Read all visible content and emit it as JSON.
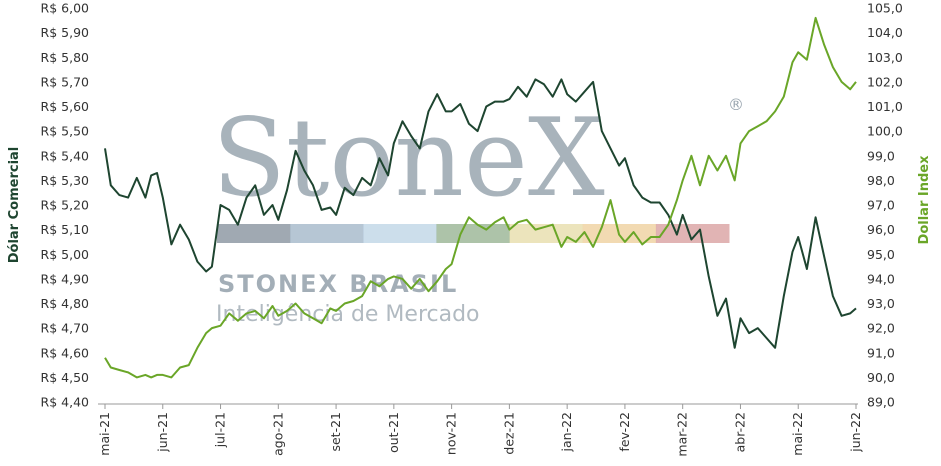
{
  "chart_data": {
    "type": "line",
    "xlabel": "",
    "categories": [
      "mai-21",
      "jun-21",
      "jul-21",
      "ago-21",
      "set-21",
      "out-21",
      "nov-21",
      "dez-21",
      "jan-22",
      "fev-22",
      "mar-22",
      "abr-22",
      "mai-22",
      "jun-22"
    ],
    "y_left": {
      "label": "Dólar Comercial",
      "range": [
        4.4,
        6.0
      ],
      "ticks": [
        "R$ 4,40",
        "R$ 4,50",
        "R$ 4,60",
        "R$ 4,70",
        "R$ 4,80",
        "R$ 4,90",
        "R$ 5,00",
        "R$ 5,10",
        "R$ 5,20",
        "R$ 5,30",
        "R$ 5,40",
        "R$ 5,50",
        "R$ 5,60",
        "R$ 5,70",
        "R$ 5,80",
        "R$ 5,90",
        "R$ 6,00"
      ],
      "color": "#1e4530"
    },
    "y_right": {
      "label": "Dollar Index",
      "range": [
        89.0,
        105.0
      ],
      "ticks": [
        "89,0",
        "90,0",
        "91,0",
        "92,0",
        "93,0",
        "94,0",
        "95,0",
        "96,0",
        "97,0",
        "98,0",
        "99,0",
        "100,0",
        "101,0",
        "102,0",
        "103,0",
        "104,0",
        "105,0"
      ],
      "color": "#6aa628"
    },
    "grid": false,
    "series": [
      {
        "axis": "left",
        "color": "#1e4530",
        "x": [
          0,
          0.1,
          0.25,
          0.4,
          0.55,
          0.7,
          0.8,
          0.9,
          1.0,
          1.15,
          1.3,
          1.45,
          1.6,
          1.75,
          1.85,
          2.0,
          2.15,
          2.3,
          2.45,
          2.6,
          2.75,
          2.9,
          3.0,
          3.15,
          3.3,
          3.45,
          3.6,
          3.75,
          3.9,
          4.0,
          4.15,
          4.3,
          4.45,
          4.6,
          4.75,
          4.9,
          5.0,
          5.15,
          5.3,
          5.45,
          5.6,
          5.75,
          5.9,
          6.0,
          6.15,
          6.3,
          6.45,
          6.6,
          6.75,
          6.9,
          7.0,
          7.15,
          7.3,
          7.45,
          7.6,
          7.75,
          7.9,
          8.0,
          8.15,
          8.3,
          8.45,
          8.6,
          8.75,
          8.9,
          9.0,
          9.15,
          9.3,
          9.45,
          9.6,
          9.75,
          9.9,
          10.0,
          10.15,
          10.3,
          10.45,
          10.6,
          10.75,
          10.9,
          11.0,
          11.15,
          11.3,
          11.45,
          11.6,
          11.75,
          11.9,
          12.0,
          12.15,
          12.3,
          12.45,
          12.6,
          12.75,
          12.9,
          13.0
        ],
        "values": [
          5.43,
          5.28,
          5.24,
          5.23,
          5.31,
          5.23,
          5.32,
          5.33,
          5.23,
          5.04,
          5.12,
          5.06,
          4.97,
          4.93,
          4.95,
          5.2,
          5.18,
          5.12,
          5.23,
          5.28,
          5.16,
          5.2,
          5.14,
          5.26,
          5.42,
          5.34,
          5.28,
          5.18,
          5.19,
          5.16,
          5.27,
          5.24,
          5.31,
          5.28,
          5.39,
          5.32,
          5.45,
          5.54,
          5.48,
          5.43,
          5.58,
          5.65,
          5.58,
          5.58,
          5.61,
          5.53,
          5.5,
          5.6,
          5.62,
          5.62,
          5.63,
          5.68,
          5.64,
          5.71,
          5.69,
          5.64,
          5.71,
          5.65,
          5.62,
          5.66,
          5.7,
          5.5,
          5.43,
          5.36,
          5.39,
          5.28,
          5.23,
          5.21,
          5.21,
          5.16,
          5.08,
          5.16,
          5.06,
          5.1,
          4.91,
          4.75,
          4.82,
          4.62,
          4.74,
          4.68,
          4.7,
          4.66,
          4.62,
          4.83,
          5.01,
          5.07,
          4.94,
          5.15,
          4.99,
          4.83,
          4.75,
          4.76,
          4.78
        ],
        "display_values": []
      },
      {
        "axis": "right",
        "color": "#6aa628",
        "x": [
          0,
          0.1,
          0.25,
          0.4,
          0.55,
          0.7,
          0.8,
          0.9,
          1.0,
          1.15,
          1.3,
          1.45,
          1.6,
          1.75,
          1.85,
          2.0,
          2.15,
          2.3,
          2.45,
          2.6,
          2.75,
          2.9,
          3.0,
          3.15,
          3.3,
          3.45,
          3.6,
          3.75,
          3.9,
          4.0,
          4.15,
          4.3,
          4.45,
          4.6,
          4.75,
          4.9,
          5.0,
          5.15,
          5.3,
          5.45,
          5.6,
          5.75,
          5.9,
          6.0,
          6.15,
          6.3,
          6.45,
          6.6,
          6.75,
          6.9,
          7.0,
          7.15,
          7.3,
          7.45,
          7.6,
          7.75,
          7.9,
          8.0,
          8.15,
          8.3,
          8.45,
          8.6,
          8.75,
          8.9,
          9.0,
          9.15,
          9.3,
          9.45,
          9.6,
          9.75,
          9.9,
          10.0,
          10.15,
          10.3,
          10.45,
          10.6,
          10.75,
          10.9,
          11.0,
          11.15,
          11.3,
          11.45,
          11.6,
          11.75,
          11.9,
          12.0,
          12.15,
          12.3,
          12.45,
          12.6,
          12.75,
          12.9,
          13.0
        ],
        "values": [
          90.8,
          90.4,
          90.3,
          90.2,
          90.0,
          90.1,
          90.0,
          90.1,
          90.1,
          90.0,
          90.4,
          90.5,
          91.2,
          91.8,
          92.0,
          92.1,
          92.6,
          92.3,
          92.6,
          92.7,
          92.4,
          92.9,
          92.5,
          92.7,
          93.0,
          92.6,
          92.4,
          92.2,
          92.8,
          92.7,
          93.0,
          93.1,
          93.3,
          93.9,
          93.7,
          94.0,
          94.1,
          94.0,
          93.6,
          94.0,
          93.5,
          93.9,
          94.4,
          94.6,
          95.8,
          96.5,
          96.2,
          96.0,
          96.3,
          96.5,
          96.0,
          96.3,
          96.4,
          96.0,
          96.1,
          96.2,
          95.3,
          95.7,
          95.5,
          95.9,
          95.3,
          96.1,
          97.2,
          95.8,
          95.5,
          95.9,
          95.4,
          95.7,
          95.7,
          96.2,
          97.2,
          98.0,
          99.0,
          97.8,
          99.0,
          98.4,
          99.0,
          98.0,
          99.5,
          100.0,
          100.2,
          100.4,
          100.8,
          101.4,
          102.8,
          103.2,
          102.9,
          104.6,
          103.5,
          102.6,
          102.0,
          101.7,
          102.0
        ],
        "display_values": []
      }
    ]
  },
  "watermark": {
    "logo": "StoneX",
    "brand": "STONEX BRASIL",
    "tagline": "Inteligência de Mercado",
    "registered": "®",
    "bar_colors": [
      "#8f9aa5",
      "#a9bccc",
      "#c3d8e8",
      "#9fb89a",
      "#e9dfb0",
      "#f0d3a4",
      "#dca7a7"
    ]
  }
}
